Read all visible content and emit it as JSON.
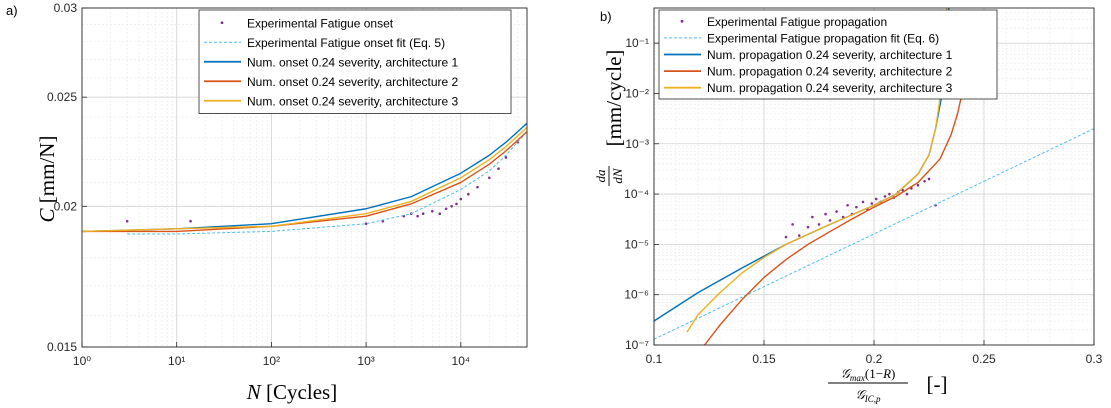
{
  "chart_data": [
    {
      "panel": "a)",
      "type": "line",
      "xscale": "log",
      "yscale": "log",
      "xlim": [
        1,
        50000
      ],
      "ylim": [
        0.015,
        0.03
      ],
      "xlabel": "N [Cycles]",
      "ylabel": "C [mm/N]",
      "xticks": [
        1,
        10,
        100,
        1000,
        10000
      ],
      "xtick_labels": [
        "10^0",
        "10^1",
        "10^2",
        "10^3",
        "10^4"
      ],
      "yticks": [
        0.015,
        0.02,
        0.025,
        0.03
      ],
      "ytick_labels": [
        "0.015",
        "0.02",
        "0.025",
        "0.03"
      ],
      "grid": true,
      "legend_position": "top-right",
      "series": [
        {
          "name": "Experimental Fatigue onset",
          "style": "dots",
          "color": "#7e2f8e",
          "x": [
            3,
            14,
            1000,
            1500,
            2500,
            3000,
            3500,
            4000,
            5000,
            6000,
            7000,
            8000,
            9000,
            10000,
            12000,
            15000,
            20000,
            25000,
            30000,
            40000
          ],
          "y": [
            0.0194,
            0.0194,
            0.0193,
            0.0194,
            0.0196,
            0.0197,
            0.0196,
            0.0197,
            0.0198,
            0.0197,
            0.0199,
            0.02,
            0.0201,
            0.0203,
            0.0205,
            0.0208,
            0.0212,
            0.0216,
            0.0221,
            0.0228
          ]
        },
        {
          "name": "Experimental Fatigue onset fit (Eq. 5)",
          "style": "dashed",
          "color": "#4dbeee",
          "x": [
            3,
            10,
            100,
            1000,
            3000,
            10000,
            20000,
            30000,
            50000
          ],
          "y": [
            0.0189,
            0.0189,
            0.019,
            0.0193,
            0.0197,
            0.0207,
            0.0215,
            0.0222,
            0.0233
          ]
        },
        {
          "name": "Num. onset 0.24 severity, architecture 1",
          "style": "solid",
          "color": "#0072bd",
          "x": [
            1,
            10,
            100,
            1000,
            3000,
            10000,
            20000,
            30000,
            50000
          ],
          "y": [
            0.019,
            0.0191,
            0.0193,
            0.0199,
            0.0204,
            0.0214,
            0.0222,
            0.0228,
            0.0237
          ]
        },
        {
          "name": "Num. onset 0.24 severity, architecture 2",
          "style": "solid",
          "color": "#d95319",
          "x": [
            1,
            10,
            100,
            1000,
            3000,
            10000,
            20000,
            30000,
            50000
          ],
          "y": [
            0.019,
            0.019,
            0.0192,
            0.0196,
            0.0201,
            0.021,
            0.0218,
            0.0224,
            0.0233
          ]
        },
        {
          "name": "Num. onset 0.24 severity, architecture 3",
          "style": "solid",
          "color": "#edb120",
          "x": [
            1,
            10,
            100,
            1000,
            3000,
            10000,
            20000,
            30000,
            50000
          ],
          "y": [
            0.019,
            0.0191,
            0.0192,
            0.0197,
            0.0202,
            0.0212,
            0.022,
            0.0226,
            0.0235
          ]
        }
      ]
    },
    {
      "panel": "b)",
      "type": "line",
      "xscale": "linear",
      "yscale": "log",
      "xlim": [
        0.1,
        0.3
      ],
      "ylim": [
        1e-07,
        0.5
      ],
      "xlabel": "G_max(1-R) / G_IC,p [-]",
      "ylabel": "da/dN [mm/cycle]",
      "xticks": [
        0.1,
        0.15,
        0.2,
        0.25,
        0.3
      ],
      "xtick_labels": [
        "0.1",
        "0.15",
        "0.2",
        "0.25",
        "0.3"
      ],
      "yticks": [
        1e-07,
        1e-06,
        1e-05,
        0.0001,
        0.001,
        0.01,
        0.1
      ],
      "ytick_labels": [
        "10^-7",
        "10^-6",
        "10^-5",
        "10^-4",
        "10^-3",
        "10^-2",
        "10^-1"
      ],
      "grid": true,
      "legend_position": "top-right",
      "series": [
        {
          "name": "Experimental Fatigue propagation",
          "style": "dots",
          "color": "#7e2f8e",
          "x": [
            0.16,
            0.163,
            0.166,
            0.17,
            0.172,
            0.175,
            0.178,
            0.18,
            0.183,
            0.186,
            0.188,
            0.19,
            0.192,
            0.195,
            0.197,
            0.199,
            0.201,
            0.203,
            0.205,
            0.207,
            0.209,
            0.211,
            0.213,
            0.215,
            0.217,
            0.22,
            0.223,
            0.225,
            0.228
          ],
          "y": [
            1.4e-05,
            2.5e-05,
            1.5e-05,
            2.2e-05,
            3.5e-05,
            2.5e-05,
            4e-05,
            3e-05,
            4.5e-05,
            3.5e-05,
            6e-05,
            4e-05,
            5.5e-05,
            7e-05,
            5e-05,
            6.5e-05,
            8e-05,
            7e-05,
            9e-05,
            0.0001,
            8.5e-05,
            0.00011,
            0.00012,
            0.0001,
            0.00013,
            0.00015,
            0.00018,
            0.0002,
            6e-05
          ]
        },
        {
          "name": "Experimental Fatigue propagation fit (Eq. 6)",
          "style": "dashed",
          "color": "#4dbeee",
          "x": [
            0.1,
            0.3
          ],
          "y": [
            1.3e-07,
            0.002
          ]
        },
        {
          "name": "Num. propagation 0.24 severity, architecture 1",
          "style": "solid",
          "color": "#0072bd",
          "x": [
            0.1,
            0.12,
            0.14,
            0.16,
            0.18,
            0.2,
            0.21,
            0.22,
            0.225,
            0.228,
            0.231,
            0.233,
            0.234
          ],
          "y": [
            3e-07,
            1.1e-06,
            3.4e-06,
            1e-05,
            2.5e-05,
            6e-05,
            0.0001,
            0.00025,
            0.0006,
            0.002,
            0.01,
            0.1,
            0.5
          ]
        },
        {
          "name": "Num. propagation 0.24 severity, architecture 2",
          "style": "solid",
          "color": "#d95319",
          "x": [
            0.123,
            0.13,
            0.14,
            0.15,
            0.16,
            0.17,
            0.18,
            0.19,
            0.2,
            0.21,
            0.22,
            0.23,
            0.235,
            0.238,
            0.24
          ],
          "y": [
            1e-07,
            2.5e-07,
            8e-07,
            2.2e-06,
            5e-06,
            1e-05,
            1.8e-05,
            3.2e-05,
            5.5e-05,
            9e-05,
            0.00017,
            0.0005,
            0.0015,
            0.004,
            0.01
          ]
        },
        {
          "name": "Num. propagation 0.24 severity, architecture 3",
          "style": "solid",
          "color": "#edb120",
          "x": [
            0.115,
            0.12,
            0.13,
            0.14,
            0.15,
            0.16,
            0.18,
            0.2,
            0.21,
            0.22,
            0.225,
            0.228,
            0.23,
            0.232,
            0.233
          ],
          "y": [
            1.8e-07,
            4e-07,
            1.1e-06,
            2.7e-06,
            5.5e-06,
            1e-05,
            2.5e-05,
            6e-05,
            0.0001,
            0.00025,
            0.0006,
            0.002,
            0.008,
            0.05,
            0.5
          ]
        }
      ]
    }
  ]
}
